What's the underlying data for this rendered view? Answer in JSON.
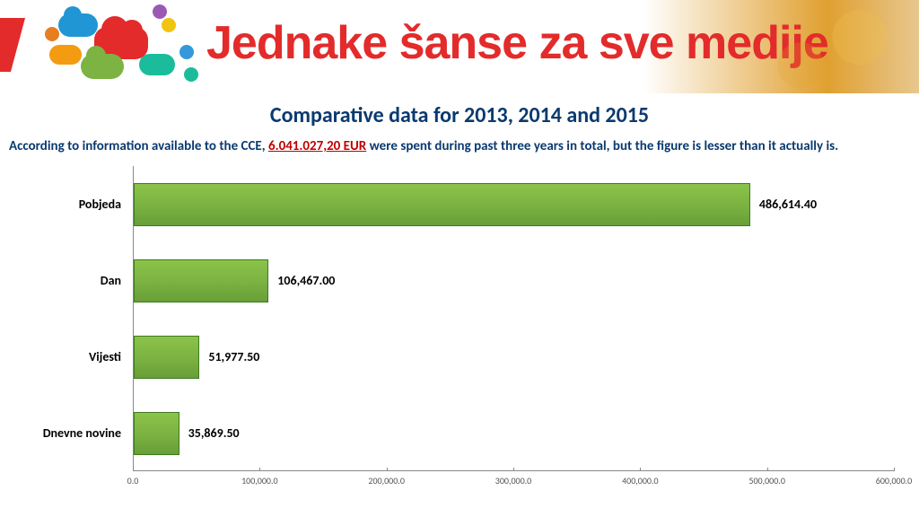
{
  "banner": {
    "title": "Jednake šanse za sve medije",
    "title_color": "#e32b2b"
  },
  "page": {
    "title": "Comparative data for 2013, 2014 and 2015",
    "title_color": "#0b3a6f",
    "description_pre": "According to information available to the CCE, ",
    "description_highlight": "6.041.027,20 EUR",
    "description_post": " were spent during past three years in total, but the figure is lesser than it actually is.",
    "description_color": "#0b3a6f",
    "highlight_color": "#c00000"
  },
  "chart": {
    "type": "bar-horizontal",
    "x_max": 600000,
    "x_ticks": [
      "0.0",
      "100,000.0",
      "200,000.0",
      "300,000.0",
      "400,000.0",
      "500,000.0",
      "600,000.0"
    ],
    "x_tick_values": [
      0,
      100000,
      200000,
      300000,
      400000,
      500000,
      600000
    ],
    "bar_color_top": "#8bc34a",
    "bar_color_bottom": "#689f38",
    "bar_border": "#3d7a1f",
    "background_color": "#ffffff",
    "label_fontsize": 14,
    "tick_fontsize": 10,
    "rows": [
      {
        "label": "Pobjeda",
        "value": 486614.4,
        "value_label": "486,614.40"
      },
      {
        "label": "Dan",
        "value": 106467.0,
        "value_label": "106,467.00"
      },
      {
        "label": "Vijesti",
        "value": 51977.5,
        "value_label": "51,977.50"
      },
      {
        "label": "Dnevne novine",
        "value": 35869.5,
        "value_label": "35,869.50"
      }
    ]
  }
}
